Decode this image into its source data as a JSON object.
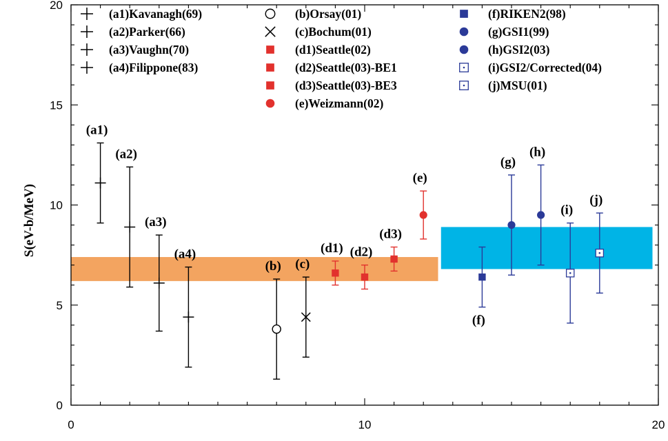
{
  "chart_data": {
    "type": "scatter",
    "title": "",
    "xlabel": "",
    "ylabel": "S(eV-b/MeV)",
    "xlim": [
      0,
      20
    ],
    "ylim": [
      0,
      20
    ],
    "x_ticks": [
      "0",
      "10",
      "20"
    ],
    "y_ticks": [
      "0",
      "5",
      "10",
      "15",
      "20"
    ],
    "grid": false,
    "legend_placement": "top",
    "colors": {
      "black": "#000000",
      "red": "#e2312d",
      "blue": "#2b3a98",
      "orange": "#f3a460",
      "cyan": "#00b4e6"
    },
    "bands": [
      {
        "x_range": [
          0,
          12.5
        ],
        "y_range": [
          6.2,
          7.4
        ],
        "color": "#f3a460"
      },
      {
        "x_range": [
          12.6,
          19.8
        ],
        "y_range": [
          6.8,
          8.9
        ],
        "color": "#00b4e6"
      }
    ],
    "points": [
      {
        "label": "(a1)",
        "legend": "(a1)Kavanagh(69)",
        "marker": "plus",
        "color": "#000000",
        "x": 1,
        "y": 11.1,
        "yerr_low": 9.1,
        "yerr_high": 13.1,
        "label_pos": "above"
      },
      {
        "label": "(a2)",
        "legend": "(a2)Parker(66)",
        "marker": "plus",
        "color": "#000000",
        "x": 2,
        "y": 8.9,
        "yerr_low": 5.9,
        "yerr_high": 11.9,
        "label_pos": "above"
      },
      {
        "label": "(a3)",
        "legend": "(a3)Vaughn(70)",
        "marker": "plus",
        "color": "#000000",
        "x": 3,
        "y": 6.1,
        "yerr_low": 3.7,
        "yerr_high": 8.5,
        "label_pos": "above"
      },
      {
        "label": "(a4)",
        "legend": "(a4)Filippone(83)",
        "marker": "plus",
        "color": "#000000",
        "x": 4,
        "y": 4.4,
        "yerr_low": 1.9,
        "yerr_high": 6.9,
        "label_pos": "above"
      },
      {
        "label": "(b)",
        "legend": "(b)Orsay(01)",
        "marker": "open-circle",
        "color": "#000000",
        "x": 7,
        "y": 3.8,
        "yerr_low": 1.3,
        "yerr_high": 6.3,
        "label_pos": "above"
      },
      {
        "label": "(c)",
        "legend": "(c)Bochum(01)",
        "marker": "cross",
        "color": "#000000",
        "x": 8,
        "y": 4.4,
        "yerr_low": 2.4,
        "yerr_high": 6.4,
        "label_pos": "above"
      },
      {
        "label": "(d1)",
        "legend": "(d1)Seattle(02)",
        "marker": "filled-square",
        "color": "#e2312d",
        "x": 9,
        "y": 6.6,
        "yerr_low": 6.0,
        "yerr_high": 7.2,
        "label_pos": "above"
      },
      {
        "label": "(d2)",
        "legend": "(d2)Seattle(03)-BE1",
        "marker": "filled-square",
        "color": "#e2312d",
        "x": 10,
        "y": 6.4,
        "yerr_low": 5.8,
        "yerr_high": 7.0,
        "label_pos": "above"
      },
      {
        "label": "(d3)",
        "legend": "(d3)Seattle(03)-BE3",
        "marker": "filled-square",
        "color": "#e2312d",
        "x": 11,
        "y": 7.3,
        "yerr_low": 6.7,
        "yerr_high": 7.9,
        "label_pos": "above"
      },
      {
        "label": "(e)",
        "legend": "(e)Weizmann(02)",
        "marker": "filled-circle",
        "color": "#e2312d",
        "x": 12,
        "y": 9.5,
        "yerr_low": 8.3,
        "yerr_high": 10.7,
        "label_pos": "above"
      },
      {
        "label": "(f)",
        "legend": "(f)RIKEN2(98)",
        "marker": "filled-square",
        "color": "#2b3a98",
        "x": 14,
        "y": 6.4,
        "yerr_low": 4.9,
        "yerr_high": 7.9,
        "label_pos": "below"
      },
      {
        "label": "(g)",
        "legend": "(g)GSI1(99)",
        "marker": "filled-circle",
        "color": "#2b3a98",
        "x": 15,
        "y": 9.0,
        "yerr_low": 6.5,
        "yerr_high": 11.5,
        "label_pos": "above"
      },
      {
        "label": "(h)",
        "legend": "(h)GSI2(03)",
        "marker": "filled-circle",
        "color": "#2b3a98",
        "x": 16,
        "y": 9.5,
        "yerr_low": 7.0,
        "yerr_high": 12.0,
        "label_pos": "above"
      },
      {
        "label": "(i)",
        "legend": "(i)GSI2/Corrected(04)",
        "marker": "dotted-square",
        "color": "#2b3a98",
        "x": 17,
        "y": 6.6,
        "yerr_low": 4.1,
        "yerr_high": 9.1,
        "label_pos": "above"
      },
      {
        "label": "(j)",
        "legend": "(j)MSU(01)",
        "marker": "dotted-square",
        "color": "#2b3a98",
        "x": 18,
        "y": 7.6,
        "yerr_low": 5.6,
        "yerr_high": 9.6,
        "label_pos": "above"
      }
    ]
  }
}
